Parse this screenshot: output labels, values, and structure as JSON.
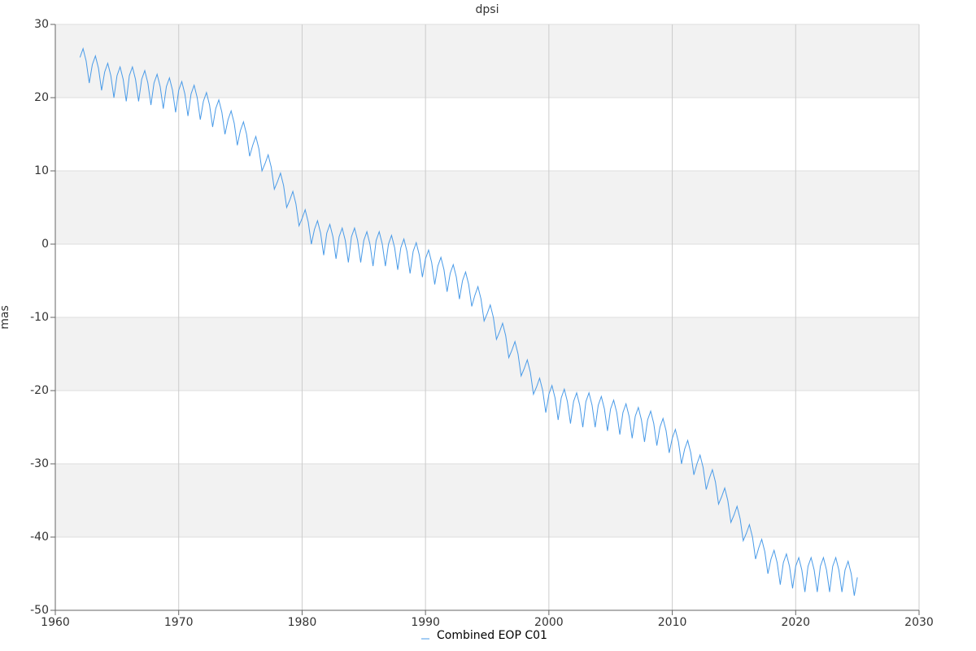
{
  "chart_data": {
    "type": "line",
    "title": "dpsi",
    "ylabel": "mas",
    "xlim": [
      1960,
      2030
    ],
    "xticks": [
      1960,
      1970,
      1980,
      1990,
      2000,
      2010,
      2020,
      2030
    ],
    "ylim": [
      -50,
      30
    ],
    "yticks": [
      -50,
      -40,
      -30,
      -20,
      -10,
      0,
      10,
      20,
      30
    ],
    "grid": true,
    "x": [
      1962,
      1962.25,
      1962.5,
      1962.75,
      1963,
      1963.25,
      1963.5,
      1963.75,
      1964,
      1964.25,
      1964.5,
      1964.75,
      1965,
      1965.25,
      1965.5,
      1965.75,
      1966,
      1966.25,
      1966.5,
      1966.75,
      1967,
      1967.25,
      1967.5,
      1967.75,
      1968,
      1968.25,
      1968.5,
      1968.75,
      1969,
      1969.25,
      1969.5,
      1969.75,
      1970,
      1970.25,
      1970.5,
      1970.75,
      1971,
      1971.25,
      1971.5,
      1971.75,
      1972,
      1972.25,
      1972.5,
      1972.75,
      1973,
      1973.25,
      1973.5,
      1973.75,
      1974,
      1974.25,
      1974.5,
      1974.75,
      1975,
      1975.25,
      1975.5,
      1975.75,
      1976,
      1976.25,
      1976.5,
      1976.75,
      1977,
      1977.25,
      1977.5,
      1977.75,
      1978,
      1978.25,
      1978.5,
      1978.75,
      1979,
      1979.25,
      1979.5,
      1979.75,
      1980,
      1980.25,
      1980.5,
      1980.75,
      1981,
      1981.25,
      1981.5,
      1981.75,
      1982,
      1982.25,
      1982.5,
      1982.75,
      1983,
      1983.25,
      1983.5,
      1983.75,
      1984,
      1984.25,
      1984.5,
      1984.75,
      1985,
      1985.25,
      1985.5,
      1985.75,
      1986,
      1986.25,
      1986.5,
      1986.75,
      1987,
      1987.25,
      1987.5,
      1987.75,
      1988,
      1988.25,
      1988.5,
      1988.75,
      1989,
      1989.25,
      1989.5,
      1989.75,
      1990,
      1990.25,
      1990.5,
      1990.75,
      1991,
      1991.25,
      1991.5,
      1991.75,
      1992,
      1992.25,
      1992.5,
      1992.75,
      1993,
      1993.25,
      1993.5,
      1993.75,
      1994,
      1994.25,
      1994.5,
      1994.75,
      1995,
      1995.25,
      1995.5,
      1995.75,
      1996,
      1996.25,
      1996.5,
      1996.75,
      1997,
      1997.25,
      1997.5,
      1997.75,
      1998,
      1998.25,
      1998.5,
      1998.75,
      1999,
      1999.25,
      1999.5,
      1999.75,
      2000,
      2000.25,
      2000.5,
      2000.75,
      2001,
      2001.25,
      2001.5,
      2001.75,
      2002,
      2002.25,
      2002.5,
      2002.75,
      2003,
      2003.25,
      2003.5,
      2003.75,
      2004,
      2004.25,
      2004.5,
      2004.75,
      2005,
      2005.25,
      2005.5,
      2005.75,
      2006,
      2006.25,
      2006.5,
      2006.75,
      2007,
      2007.25,
      2007.5,
      2007.75,
      2008,
      2008.25,
      2008.5,
      2008.75,
      2009,
      2009.25,
      2009.5,
      2009.75,
      2010,
      2010.25,
      2010.5,
      2010.75,
      2011,
      2011.25,
      2011.5,
      2011.75,
      2012,
      2012.25,
      2012.5,
      2012.75,
      2013,
      2013.25,
      2013.5,
      2013.75,
      2014,
      2014.25,
      2014.5,
      2014.75,
      2015,
      2015.25,
      2015.5,
      2015.75,
      2016,
      2016.25,
      2016.5,
      2016.75,
      2017,
      2017.25,
      2017.5,
      2017.75,
      2018,
      2018.25,
      2018.5,
      2018.75,
      2019,
      2019.25,
      2019.5,
      2019.75,
      2020,
      2020.25,
      2020.5,
      2020.75,
      2021,
      2021.25,
      2021.5,
      2021.75,
      2022,
      2022.25,
      2022.5,
      2022.75,
      2023,
      2023.25,
      2023.5,
      2023.75,
      2024,
      2024.25,
      2024.5,
      2024.75,
      2025
    ],
    "series": [
      {
        "name": "Combined EOP C01",
        "color": "#4a9be8",
        "values": [
          25.5,
          26.7,
          25,
          22,
          24.5,
          25.7,
          24,
          21,
          23.5,
          24.7,
          23,
          20,
          23,
          24.2,
          22.5,
          19.5,
          23,
          24.2,
          22.5,
          19.5,
          22.5,
          23.7,
          22,
          19,
          22,
          23.2,
          21.5,
          18.5,
          21.5,
          22.7,
          21,
          18,
          21,
          22.2,
          20.5,
          17.5,
          20.5,
          21.7,
          20,
          17,
          19.5,
          20.7,
          19,
          16,
          18.5,
          19.7,
          18,
          15,
          17,
          18.2,
          16.5,
          13.5,
          15.5,
          16.7,
          15,
          12,
          13.5,
          14.7,
          13,
          10,
          11,
          12.2,
          10.5,
          7.5,
          8.5,
          9.7,
          8,
          5,
          6,
          7.2,
          5.5,
          2.5,
          3.5,
          4.7,
          3,
          0,
          2,
          3.2,
          1.5,
          -1.5,
          1.5,
          2.7,
          1,
          -2,
          1,
          2.2,
          0.5,
          -2.5,
          1,
          2.2,
          0.5,
          -2.5,
          0.5,
          1.7,
          0,
          -3,
          0.5,
          1.7,
          0,
          -3,
          0,
          1.2,
          -0.5,
          -3.5,
          -0.5,
          0.7,
          -1,
          -4,
          -1,
          0.2,
          -1.5,
          -4.5,
          -2,
          -0.8,
          -2.5,
          -5.5,
          -3,
          -1.8,
          -3.5,
          -6.5,
          -4,
          -2.8,
          -4.5,
          -7.5,
          -5,
          -3.8,
          -5.5,
          -8.5,
          -7,
          -5.8,
          -7.5,
          -10.5,
          -9.5,
          -8.3,
          -10,
          -13,
          -12,
          -10.8,
          -12.5,
          -15.5,
          -14.5,
          -13.3,
          -15,
          -18,
          -17,
          -15.8,
          -17.5,
          -20.5,
          -19.5,
          -18.3,
          -20,
          -23,
          -20.5,
          -19.3,
          -21,
          -24,
          -21,
          -19.8,
          -21.5,
          -24.5,
          -21.5,
          -20.3,
          -22,
          -25,
          -21.5,
          -20.3,
          -22,
          -25,
          -22,
          -20.8,
          -22.5,
          -25.5,
          -22.5,
          -21.3,
          -23,
          -26,
          -23,
          -21.8,
          -23.5,
          -26.5,
          -23.5,
          -22.3,
          -24,
          -27,
          -24,
          -22.8,
          -24.5,
          -27.5,
          -25,
          -23.8,
          -25.5,
          -28.5,
          -26.5,
          -25.3,
          -27,
          -30,
          -28,
          -26.8,
          -28.5,
          -31.5,
          -30,
          -28.8,
          -30.5,
          -33.5,
          -32,
          -30.8,
          -32.5,
          -35.5,
          -34.5,
          -33.3,
          -35,
          -38,
          -37,
          -35.8,
          -37.5,
          -40.5,
          -39.5,
          -38.3,
          -40,
          -43,
          -41.5,
          -40.3,
          -42,
          -45,
          -43,
          -41.8,
          -43.5,
          -46.5,
          -43.5,
          -42.3,
          -44,
          -47,
          -44,
          -42.8,
          -44.5,
          -47.5,
          -44,
          -42.8,
          -44.5,
          -47.5,
          -44,
          -42.8,
          -44.5,
          -47.5,
          -44,
          -42.8,
          -44.5,
          -47.5,
          -44.5,
          -43.3,
          -45,
          -48,
          -45.5
        ]
      }
    ]
  }
}
